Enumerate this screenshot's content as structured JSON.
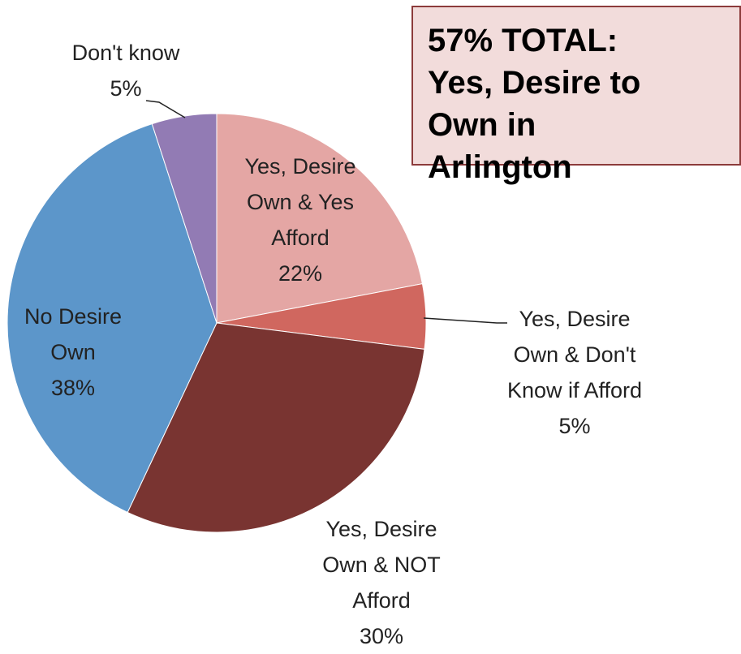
{
  "chart_data": {
    "type": "pie",
    "categories": [
      "Yes, Desire Own & Yes Afford",
      "Yes, Desire Own & Don't Know if Afford",
      "Yes, Desire Own & NOT Afford",
      "No Desire Own",
      "Don't know"
    ],
    "values": [
      22,
      5,
      30,
      38,
      5
    ],
    "value_labels": [
      "22%",
      "5%",
      "30%",
      "38%",
      "5%"
    ],
    "colors": [
      "#e4a6a4",
      "#d0675f",
      "#793431",
      "#5c96ca",
      "#927bb4"
    ],
    "annotation": "57% TOTAL: Yes, Desire to Own in Arlington"
  }
}
